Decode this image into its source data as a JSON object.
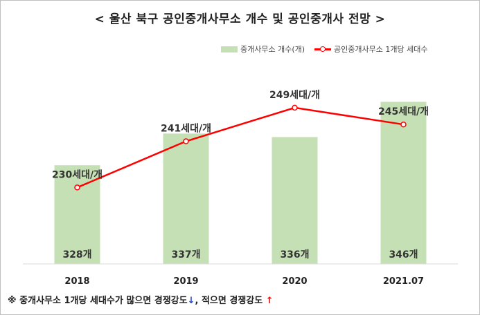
{
  "title": "< 울산 북구 공인중개사무소 개수 및 공인중개사 전망 >",
  "legend": {
    "bar_label": "중개사무소 개수(개)",
    "line_label": "공인중개사무소 1개당 세대수"
  },
  "footnote": {
    "text_a": "※ 중개사무소 1개당 세대수가 많으면 경쟁강도",
    "down_arrow": "↓",
    "text_b": ", 적으면 경쟁강도 ",
    "up_arrow": "↑"
  },
  "colors": {
    "bar": "#c5e0b4",
    "line": "#ff0000",
    "axis": "#d9d9d9",
    "down_arrow": "#1f3fd1",
    "up_arrow": "#ff0000"
  },
  "chart_data": {
    "type": "bar",
    "categories": [
      "2018",
      "2019",
      "2020",
      "2021.07"
    ],
    "series": [
      {
        "name": "중개사무소 개수(개)",
        "type": "bar",
        "values": [
          328,
          337,
          336,
          346
        ],
        "labels": [
          "328개",
          "337개",
          "336개",
          "346개"
        ]
      },
      {
        "name": "공인중개사무소 1개당 세대수",
        "type": "line",
        "values": [
          230,
          241,
          249,
          245
        ],
        "labels": [
          "230세대/개",
          "241세대/개",
          "249세대/개",
          "245세대/개"
        ]
      }
    ],
    "bar_ylim": [
      300,
      360
    ],
    "line_ylim": [
      210,
      260
    ],
    "grid": false,
    "legend_position": "top-right"
  }
}
